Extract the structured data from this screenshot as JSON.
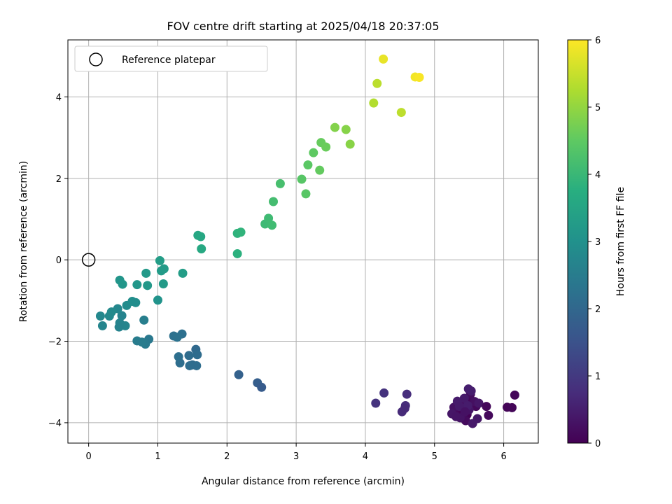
{
  "chart_data": {
    "type": "scatter",
    "title": "FOV centre drift starting at 2025/04/18 20:37:05",
    "xlabel": "Angular distance from reference (arcmin)",
    "ylabel": "Rotation from reference (arcmin)",
    "xlim": [
      -0.3,
      6.5
    ],
    "ylim": [
      -4.5,
      5.4
    ],
    "xticks": [
      0,
      1,
      2,
      3,
      4,
      5,
      6
    ],
    "yticks": [
      -4,
      -2,
      0,
      2,
      4
    ],
    "grid": true,
    "legend": {
      "placement": "top-left",
      "entries": [
        "Reference platepar"
      ]
    },
    "reference_point": {
      "x": 0,
      "y": 0
    },
    "colorbar": {
      "label": "Hours from first FF file",
      "range": [
        0,
        6
      ],
      "ticks": [
        0,
        1,
        2,
        3,
        4,
        5,
        6
      ],
      "colormap": "viridis"
    },
    "points": [
      {
        "x": 5.4,
        "y": -3.65,
        "t": 0.0
      },
      {
        "x": 5.47,
        "y": -3.8,
        "t": 0.02
      },
      {
        "x": 5.55,
        "y": -3.55,
        "t": 0.05
      },
      {
        "x": 5.35,
        "y": -3.7,
        "t": 0.07
      },
      {
        "x": 5.5,
        "y": -3.45,
        "t": 0.1
      },
      {
        "x": 5.6,
        "y": -3.6,
        "t": 0.12
      },
      {
        "x": 5.3,
        "y": -3.8,
        "t": 0.15
      },
      {
        "x": 5.45,
        "y": -3.95,
        "t": 0.17
      },
      {
        "x": 5.52,
        "y": -3.3,
        "t": 0.2
      },
      {
        "x": 5.42,
        "y": -3.52,
        "t": 0.22
      },
      {
        "x": 5.58,
        "y": -3.48,
        "t": 0.25
      },
      {
        "x": 5.28,
        "y": -3.62,
        "t": 0.27
      },
      {
        "x": 5.37,
        "y": -3.88,
        "t": 0.3
      },
      {
        "x": 5.5,
        "y": -3.68,
        "t": 0.32
      },
      {
        "x": 5.25,
        "y": -3.78,
        "t": 0.35
      },
      {
        "x": 5.62,
        "y": -3.9,
        "t": 0.37
      },
      {
        "x": 5.55,
        "y": -4.02,
        "t": 0.4
      },
      {
        "x": 5.43,
        "y": -3.4,
        "t": 0.42
      },
      {
        "x": 5.33,
        "y": -3.47,
        "t": 0.44
      },
      {
        "x": 5.48,
        "y": -3.58,
        "t": 0.46
      },
      {
        "x": 5.53,
        "y": -3.22,
        "t": 0.48
      },
      {
        "x": 5.49,
        "y": -3.17,
        "t": 0.5
      },
      {
        "x": 5.64,
        "y": -3.52,
        "t": 0.38
      },
      {
        "x": 5.36,
        "y": -3.6,
        "t": 0.43
      },
      {
        "x": 5.31,
        "y": -3.85,
        "t": 0.33
      },
      {
        "x": 5.44,
        "y": -3.73,
        "t": 0.28
      },
      {
        "x": 5.75,
        "y": -3.6,
        "t": 0.11
      },
      {
        "x": 5.78,
        "y": -3.82,
        "t": 0.13
      },
      {
        "x": 6.05,
        "y": -3.62,
        "t": 0.06
      },
      {
        "x": 6.12,
        "y": -3.63,
        "t": 0.08
      },
      {
        "x": 6.16,
        "y": -3.32,
        "t": 0.09
      },
      {
        "x": 4.53,
        "y": -3.73,
        "t": 0.72
      },
      {
        "x": 4.58,
        "y": -3.58,
        "t": 0.75
      },
      {
        "x": 4.57,
        "y": -3.65,
        "t": 0.7
      },
      {
        "x": 4.6,
        "y": -3.3,
        "t": 0.78
      },
      {
        "x": 4.27,
        "y": -3.27,
        "t": 0.85
      },
      {
        "x": 4.15,
        "y": -3.52,
        "t": 0.88
      },
      {
        "x": 2.17,
        "y": -2.82,
        "t": 1.85
      },
      {
        "x": 2.44,
        "y": -3.02,
        "t": 1.78
      },
      {
        "x": 2.5,
        "y": -3.13,
        "t": 1.72
      },
      {
        "x": 1.55,
        "y": -2.2,
        "t": 2.05
      },
      {
        "x": 1.5,
        "y": -2.58,
        "t": 2.08
      },
      {
        "x": 1.57,
        "y": -2.33,
        "t": 2.1
      },
      {
        "x": 1.45,
        "y": -2.35,
        "t": 2.12
      },
      {
        "x": 1.56,
        "y": -2.6,
        "t": 2.14
      },
      {
        "x": 1.32,
        "y": -2.53,
        "t": 2.16
      },
      {
        "x": 1.3,
        "y": -2.38,
        "t": 2.18
      },
      {
        "x": 1.35,
        "y": -1.82,
        "t": 2.2
      },
      {
        "x": 1.23,
        "y": -1.87,
        "t": 2.22
      },
      {
        "x": 1.28,
        "y": -1.9,
        "t": 2.24
      },
      {
        "x": 1.46,
        "y": -2.6,
        "t": 2.13
      },
      {
        "x": 0.87,
        "y": -1.95,
        "t": 2.4
      },
      {
        "x": 0.82,
        "y": -2.07,
        "t": 2.45
      },
      {
        "x": 0.7,
        "y": -1.99,
        "t": 2.5
      },
      {
        "x": 0.77,
        "y": -2.02,
        "t": 2.48
      },
      {
        "x": 0.8,
        "y": -1.48,
        "t": 2.55
      },
      {
        "x": 0.48,
        "y": -1.37,
        "t": 2.65
      },
      {
        "x": 0.53,
        "y": -1.62,
        "t": 2.7
      },
      {
        "x": 0.45,
        "y": -1.55,
        "t": 2.68
      },
      {
        "x": 0.44,
        "y": -1.65,
        "t": 2.66
      },
      {
        "x": 0.42,
        "y": -1.2,
        "t": 2.75
      },
      {
        "x": 0.2,
        "y": -1.62,
        "t": 2.72
      },
      {
        "x": 0.17,
        "y": -1.38,
        "t": 2.78
      },
      {
        "x": 0.3,
        "y": -1.38,
        "t": 2.8
      },
      {
        "x": 0.33,
        "y": -1.28,
        "t": 2.82
      },
      {
        "x": 0.55,
        "y": -1.12,
        "t": 2.88
      },
      {
        "x": 0.63,
        "y": -1.02,
        "t": 2.92
      },
      {
        "x": 0.68,
        "y": -1.05,
        "t": 2.9
      },
      {
        "x": 1.0,
        "y": -0.99,
        "t": 3.05
      },
      {
        "x": 0.45,
        "y": -0.5,
        "t": 3.1
      },
      {
        "x": 0.49,
        "y": -0.6,
        "t": 3.12
      },
      {
        "x": 0.7,
        "y": -0.61,
        "t": 3.15
      },
      {
        "x": 0.85,
        "y": -0.63,
        "t": 3.17
      },
      {
        "x": 0.83,
        "y": -0.33,
        "t": 3.2
      },
      {
        "x": 1.08,
        "y": -0.59,
        "t": 3.22
      },
      {
        "x": 1.05,
        "y": -0.27,
        "t": 3.25
      },
      {
        "x": 1.09,
        "y": -0.22,
        "t": 3.27
      },
      {
        "x": 1.03,
        "y": -0.02,
        "t": 3.3
      },
      {
        "x": 1.36,
        "y": -0.33,
        "t": 3.32
      },
      {
        "x": 1.58,
        "y": 0.6,
        "t": 3.55
      },
      {
        "x": 1.62,
        "y": 0.57,
        "t": 3.57
      },
      {
        "x": 1.63,
        "y": 0.27,
        "t": 3.6
      },
      {
        "x": 2.15,
        "y": 0.15,
        "t": 3.8
      },
      {
        "x": 2.15,
        "y": 0.65,
        "t": 3.85
      },
      {
        "x": 2.2,
        "y": 0.68,
        "t": 3.88
      },
      {
        "x": 2.55,
        "y": 0.88,
        "t": 4.05
      },
      {
        "x": 2.6,
        "y": 1.02,
        "t": 4.08
      },
      {
        "x": 2.65,
        "y": 0.85,
        "t": 4.1
      },
      {
        "x": 2.67,
        "y": 1.43,
        "t": 4.15
      },
      {
        "x": 2.77,
        "y": 1.87,
        "t": 4.2
      },
      {
        "x": 3.08,
        "y": 1.98,
        "t": 4.4
      },
      {
        "x": 3.14,
        "y": 1.62,
        "t": 4.42
      },
      {
        "x": 3.17,
        "y": 2.33,
        "t": 4.45
      },
      {
        "x": 3.25,
        "y": 2.63,
        "t": 4.5
      },
      {
        "x": 3.34,
        "y": 2.2,
        "t": 4.55
      },
      {
        "x": 3.36,
        "y": 2.88,
        "t": 4.58
      },
      {
        "x": 3.43,
        "y": 2.77,
        "t": 4.6
      },
      {
        "x": 3.56,
        "y": 3.25,
        "t": 4.85
      },
      {
        "x": 3.72,
        "y": 3.2,
        "t": 4.88
      },
      {
        "x": 3.78,
        "y": 2.84,
        "t": 4.9
      },
      {
        "x": 4.12,
        "y": 3.85,
        "t": 5.3
      },
      {
        "x": 4.17,
        "y": 4.33,
        "t": 5.38
      },
      {
        "x": 4.52,
        "y": 3.62,
        "t": 5.4
      },
      {
        "x": 4.26,
        "y": 4.93,
        "t": 5.8
      },
      {
        "x": 4.72,
        "y": 4.49,
        "t": 5.9
      },
      {
        "x": 4.78,
        "y": 4.48,
        "t": 5.95
      }
    ]
  }
}
